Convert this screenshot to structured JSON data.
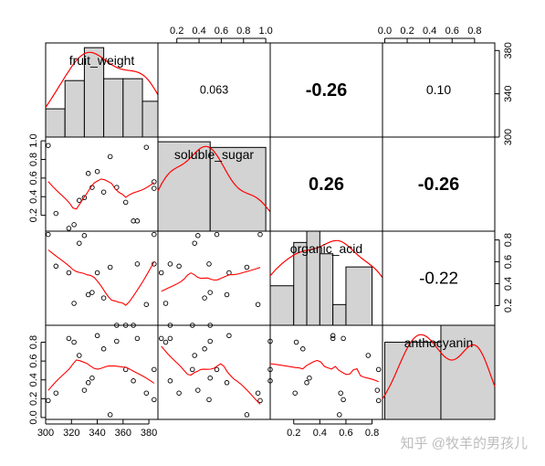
{
  "watermark": "知乎 @牧羊的男孩儿",
  "chart_data": {
    "type": "scatter",
    "variables": [
      "fruit_weight",
      "soluble_sugar",
      "organic_acid",
      "anthocyanin"
    ],
    "axis_ticks": {
      "fruit_weight": [
        "300",
        "320",
        "340",
        "360",
        "380"
      ],
      "soluble_sugar": [
        "0.2",
        "0.4",
        "0.6",
        "0.8",
        "1.0"
      ],
      "organic_acid": [
        "0.2",
        "0.4",
        "0.6",
        "0.8"
      ],
      "anthocyanin": [
        "0.0",
        "0.2",
        "0.4",
        "0.6",
        "0.8"
      ]
    },
    "axis_ranges": {
      "fruit_weight": [
        300,
        387
      ],
      "soluble_sugar": [
        0.03,
        1.04
      ],
      "organic_acid": [
        0.02,
        0.88
      ],
      "anthocyanin": [
        -0.02,
        0.98
      ]
    },
    "axis_placement": {
      "fruit_weight": "bottom",
      "soluble_sugar": "top, left",
      "organic_acid": "right, bottom",
      "anthocyanin": "top, left"
    },
    "correlations": [
      {
        "pair": [
          "fruit_weight",
          "soluble_sugar"
        ],
        "text": "0.063"
      },
      {
        "pair": [
          "fruit_weight",
          "organic_acid"
        ],
        "text": "-0.26"
      },
      {
        "pair": [
          "fruit_weight",
          "anthocyanin"
        ],
        "text": "0.10"
      },
      {
        "pair": [
          "soluble_sugar",
          "organic_acid"
        ],
        "text": "0.26"
      },
      {
        "pair": [
          "soluble_sugar",
          "anthocyanin"
        ],
        "text": "-0.26"
      },
      {
        "pair": [
          "organic_acid",
          "anthocyanin"
        ],
        "text": "-0.22"
      }
    ],
    "observations": {
      "fruit_weight": [
        302,
        308,
        318,
        322,
        326,
        330,
        333,
        336,
        340,
        345,
        350,
        355,
        362,
        368,
        371,
        378,
        384,
        384
      ],
      "soluble_sugar": [
        0.95,
        0.22,
        0.06,
        0.1,
        0.36,
        0.39,
        0.65,
        0.5,
        0.67,
        0.45,
        0.83,
        0.5,
        0.34,
        0.14,
        0.14,
        0.93,
        0.49,
        0.56
      ],
      "organic_acid": [
        0.85,
        0.56,
        0.5,
        0.22,
        0.77,
        0.84,
        0.3,
        0.32,
        0.5,
        0.27,
        0.55,
        0.02,
        0.02,
        0.02,
        0.58,
        0.21,
        0.58,
        0.85
      ],
      "anthocyanin": [
        0.18,
        0.26,
        0.84,
        0.8,
        0.66,
        0.29,
        0.37,
        0.42,
        0.87,
        0.73,
        0.03,
        0.81,
        0.51,
        0.39,
        0.84,
        0.26,
        0.19,
        0.51
      ]
    },
    "histograms": [
      {
        "variable": "fruit_weight",
        "breaks": [
          300,
          315,
          330,
          345,
          360,
          375,
          390
        ],
        "heights": [
          0.3,
          0.6,
          0.95,
          0.62,
          0.62,
          0.38
        ]
      },
      {
        "variable": "soluble_sugar",
        "breaks": [
          0.0,
          0.5,
          1.0
        ],
        "heights": [
          0.95,
          0.89
        ]
      },
      {
        "variable": "organic_acid",
        "breaks": [
          0.0,
          0.2,
          0.3,
          0.4,
          0.5,
          0.6,
          0.8,
          1.0
        ],
        "heights": [
          0.42,
          0.88,
          1.0,
          0.76,
          0.22,
          0.62,
          0
        ]
      },
      {
        "variable": "anthocyanin",
        "breaks": [
          0.0,
          0.5,
          1.0
        ],
        "heights": [
          0.82,
          1.0
        ]
      }
    ],
    "density_color": "#ff0000",
    "smoother_color": "#ff0000",
    "bar_fill": "#d3d3d3"
  }
}
